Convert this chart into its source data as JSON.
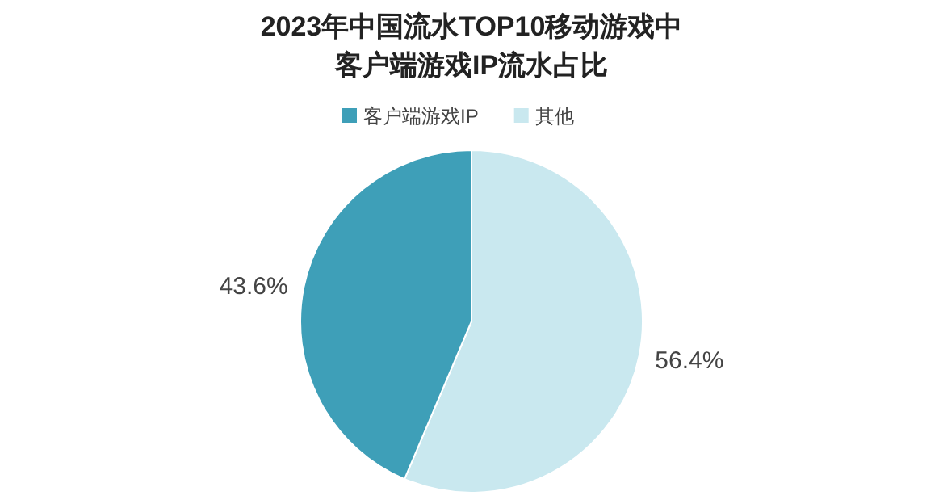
{
  "chart_data": {
    "type": "pie",
    "title": "2023年中国流水TOP10移动游戏中客户端游戏IP流水占比",
    "categories": [
      "其他",
      "客户端游戏IP"
    ],
    "values": [
      56.4,
      43.6
    ],
    "colors": [
      "#c9e8ef",
      "#3e9fb8"
    ],
    "value_labels": [
      "56.4%",
      "43.6%"
    ],
    "legend": "top"
  }
}
